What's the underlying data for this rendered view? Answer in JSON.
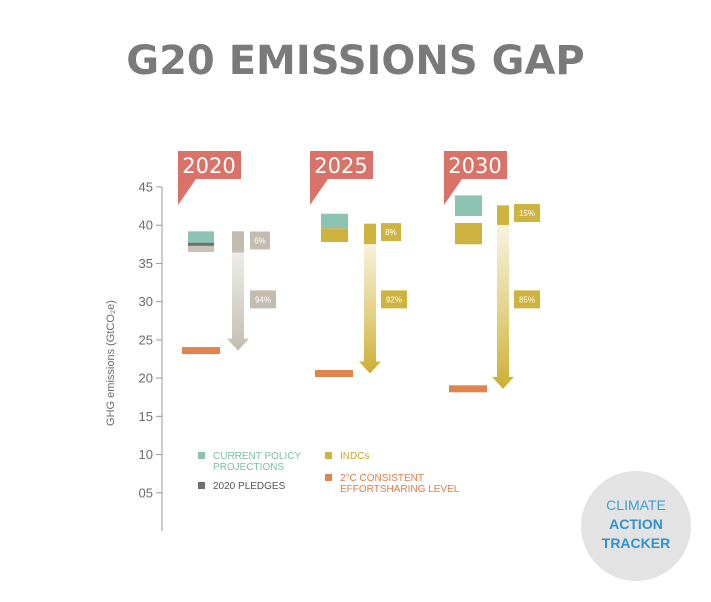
{
  "title": "G20 EMISSIONS GAP",
  "logo": {
    "line1": "CLIMATE",
    "line2": "ACTION",
    "line3": "TRACKER"
  },
  "colors": {
    "current_policy": "#8cc3b2",
    "pledges_2020": "#6f6f6f",
    "indcs": "#cfb340",
    "two_degree": "#e0834f",
    "grey_bar": "#c8c2b6",
    "label_red": "#d9736a"
  },
  "chart_data": {
    "type": "bar",
    "title": "G20 EMISSIONS GAP",
    "ylabel": "GHG emissions (GtCO₂e)",
    "xlabel": "",
    "ylim": [
      0,
      45
    ],
    "yticks": [
      {
        "value": 45,
        "label": "45"
      },
      {
        "value": 40,
        "label": "40"
      },
      {
        "value": 35,
        "label": "35"
      },
      {
        "value": 30,
        "label": "30"
      },
      {
        "value": 25,
        "label": "25"
      },
      {
        "value": 20,
        "label": "20"
      },
      {
        "value": 15,
        "label": "15"
      },
      {
        "value": 10,
        "label": "10"
      },
      {
        "value": 5,
        "label": "05"
      }
    ],
    "groups": [
      {
        "year": "2020",
        "current_policy": [
          37.4,
          39.2
        ],
        "pledges_2020": 37.5,
        "indcs": null,
        "pledge_band": [
          36.5,
          37.3
        ],
        "two_degree": 23.6,
        "arrow_style": "grey",
        "arrow_top": 39.2,
        "arrow_bottom": 23.6,
        "shares": [
          {
            "label": "6%",
            "value": 6,
            "y": 38.0
          },
          {
            "label": "94%",
            "value": 94,
            "y": 30.3
          }
        ]
      },
      {
        "year": "2025",
        "current_policy": [
          39.6,
          41.5
        ],
        "pledges_2020": null,
        "indcs": [
          37.8,
          39.6
        ],
        "two_degree": 20.6,
        "arrow_style": "indc",
        "arrow_top": 40.2,
        "arrow_bottom": 20.6,
        "shares": [
          {
            "label": "8%",
            "value": 8,
            "y": 39.1
          },
          {
            "label": "92%",
            "value": 92,
            "y": 30.3
          }
        ]
      },
      {
        "year": "2030",
        "current_policy": [
          41.2,
          43.9
        ],
        "pledges_2020": null,
        "indcs": [
          37.5,
          40.3
        ],
        "two_degree": 18.6,
        "arrow_style": "indc",
        "arrow_top": 42.6,
        "arrow_bottom": 18.6,
        "shares": [
          {
            "label": "15%",
            "value": 15,
            "y": 41.6
          },
          {
            "label": "85%",
            "value": 85,
            "y": 30.3
          }
        ]
      }
    ],
    "legend": [
      {
        "key": "current_policy",
        "label_lines": [
          "CURRENT POLICY",
          "PROJECTIONS"
        ]
      },
      {
        "key": "pledges_2020",
        "label_lines": [
          "2020 PLEDGES"
        ]
      },
      {
        "key": "indcs",
        "label_lines": [
          "INDCs"
        ]
      },
      {
        "key": "two_degree",
        "label_lines": [
          "2°C CONSISTENT",
          "EFFORTSHARING LEVEL"
        ]
      }
    ],
    "legend_position": "bottom",
    "grid": false
  }
}
